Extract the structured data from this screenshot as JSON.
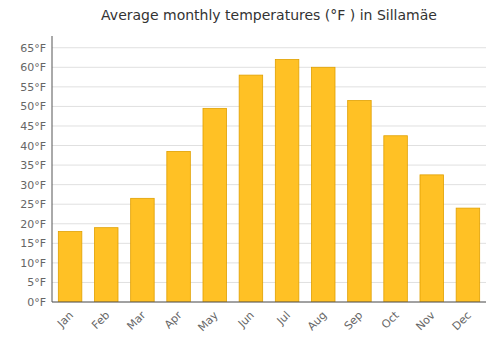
{
  "chart_data": {
    "type": "bar",
    "title": "Average monthly temperatures (°F ) in Sillamäe",
    "categories": [
      "Jan",
      "Feb",
      "Mar",
      "Apr",
      "May",
      "Jun",
      "Jul",
      "Aug",
      "Sep",
      "Oct",
      "Nov",
      "Dec"
    ],
    "values": [
      18,
      19,
      26.5,
      38.5,
      49.5,
      58,
      62,
      60,
      51.5,
      42.5,
      32.5,
      24
    ],
    "color": "#FFC125",
    "ylim": [
      0,
      68
    ],
    "yticks": [
      {
        "value": 0,
        "label": "0°F"
      },
      {
        "value": 5,
        "label": "5°F"
      },
      {
        "value": 10,
        "label": "10°F"
      },
      {
        "value": 15,
        "label": "15°F"
      },
      {
        "value": 20,
        "label": "20°F"
      },
      {
        "value": 25,
        "label": "25°F"
      },
      {
        "value": 30,
        "label": "30°F"
      },
      {
        "value": 35,
        "label": "35°F"
      },
      {
        "value": 40,
        "label": "40°F"
      },
      {
        "value": 45,
        "label": "45°F"
      },
      {
        "value": 50,
        "label": "50°F"
      },
      {
        "value": 55,
        "label": "55°F"
      },
      {
        "value": 60,
        "label": "60°F"
      },
      {
        "value": 65,
        "label": "65°F"
      }
    ],
    "grid": true
  }
}
